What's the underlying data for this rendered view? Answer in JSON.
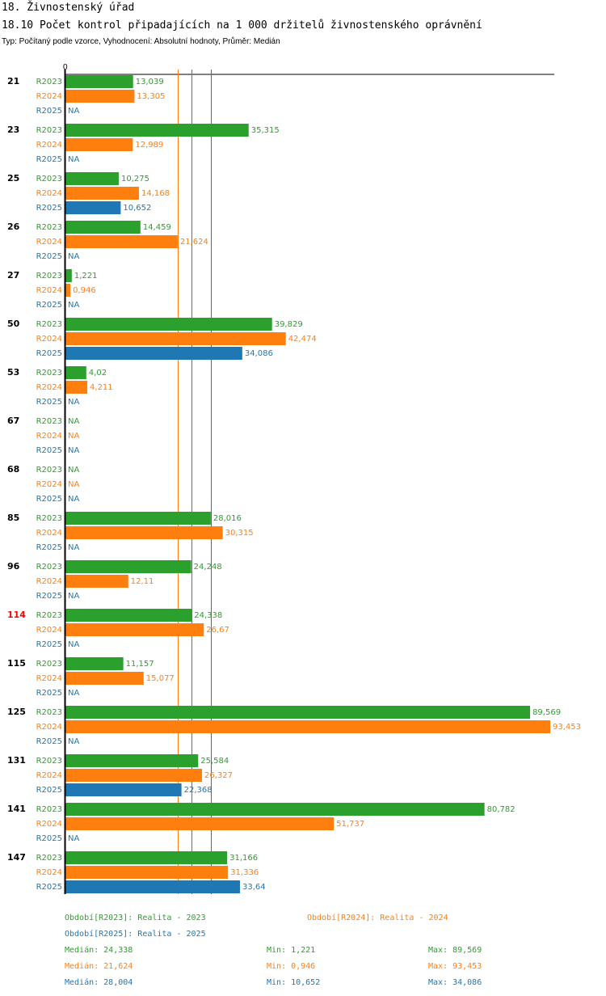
{
  "header": {
    "title": "18. Živnostenský úřad",
    "subtitle": "18.10 Počet kontrol připadajících na 1 000 držitelů živnostenského oprávnění",
    "meta": "Typ: Počítaný podle vzorce, Vyhodnocení: Absolutní hodnoty, Průměr: Medián"
  },
  "colors": {
    "R2023": "#2ca02c",
    "R2024": "#ff7f0e",
    "R2025": "#1f77b4",
    "highlight": "#ff0000",
    "text": "#000000"
  },
  "chart_data": {
    "type": "bar",
    "orientation": "horizontal",
    "axis_zero_label": "0",
    "xlim": [
      0,
      93.453
    ],
    "series_names": [
      "R2023",
      "R2024",
      "R2025"
    ],
    "categories": [
      {
        "label": "21",
        "highlight": false,
        "values": [
          13.039,
          13.305,
          null
        ],
        "labels": [
          "13,039",
          "13,305",
          "NA"
        ]
      },
      {
        "label": "23",
        "highlight": false,
        "values": [
          35.315,
          12.989,
          null
        ],
        "labels": [
          "35,315",
          "12,989",
          "NA"
        ]
      },
      {
        "label": "25",
        "highlight": false,
        "values": [
          10.275,
          14.168,
          10.652
        ],
        "labels": [
          "10,275",
          "14,168",
          "10,652"
        ]
      },
      {
        "label": "26",
        "highlight": false,
        "values": [
          14.459,
          21.624,
          null
        ],
        "labels": [
          "14,459",
          "21,624",
          "NA"
        ]
      },
      {
        "label": "27",
        "highlight": false,
        "values": [
          1.221,
          0.946,
          null
        ],
        "labels": [
          "1,221",
          "0,946",
          "NA"
        ]
      },
      {
        "label": "50",
        "highlight": false,
        "values": [
          39.829,
          42.474,
          34.086
        ],
        "labels": [
          "39,829",
          "42,474",
          "34,086"
        ]
      },
      {
        "label": "53",
        "highlight": false,
        "values": [
          4.02,
          4.211,
          null
        ],
        "labels": [
          "4,02",
          "4,211",
          "NA"
        ]
      },
      {
        "label": "67",
        "highlight": false,
        "values": [
          null,
          null,
          null
        ],
        "labels": [
          "NA",
          "NA",
          "NA"
        ]
      },
      {
        "label": "68",
        "highlight": false,
        "values": [
          null,
          null,
          null
        ],
        "labels": [
          "NA",
          "NA",
          "NA"
        ]
      },
      {
        "label": "85",
        "highlight": false,
        "values": [
          28.016,
          30.315,
          null
        ],
        "labels": [
          "28,016",
          "30,315",
          "NA"
        ]
      },
      {
        "label": "96",
        "highlight": false,
        "values": [
          24.248,
          12.11,
          null
        ],
        "labels": [
          "24,248",
          "12,11",
          "NA"
        ]
      },
      {
        "label": "114",
        "highlight": true,
        "values": [
          24.338,
          26.67,
          null
        ],
        "labels": [
          "24,338",
          "26,67",
          "NA"
        ]
      },
      {
        "label": "115",
        "highlight": false,
        "values": [
          11.157,
          15.077,
          null
        ],
        "labels": [
          "11,157",
          "15,077",
          "NA"
        ]
      },
      {
        "label": "125",
        "highlight": false,
        "values": [
          89.569,
          93.453,
          null
        ],
        "labels": [
          "89,569",
          "93,453",
          "NA"
        ]
      },
      {
        "label": "131",
        "highlight": false,
        "values": [
          25.584,
          26.327,
          22.368
        ],
        "labels": [
          "25,584",
          "26,327",
          "22,368"
        ]
      },
      {
        "label": "141",
        "highlight": false,
        "values": [
          80.782,
          51.737,
          null
        ],
        "labels": [
          "80,782",
          "51,737",
          "NA"
        ]
      },
      {
        "label": "147",
        "highlight": false,
        "values": [
          31.166,
          31.336,
          33.64
        ],
        "labels": [
          "31,166",
          "31,336",
          "33,64"
        ]
      }
    ],
    "median_lines": [
      {
        "series": "R2024",
        "value": 21.624
      },
      {
        "series": "R2023",
        "value": 24.338
      },
      {
        "series": "R2025",
        "value": 28.004
      }
    ]
  },
  "legend": {
    "periods": [
      {
        "series": "R2023",
        "text": "Období[R2023]: Realita - 2023"
      },
      {
        "series": "R2024",
        "text": "Období[R2024]: Realita - 2024"
      },
      {
        "series": "R2025",
        "text": "Období[R2025]: Realita - 2025"
      }
    ],
    "stats": [
      {
        "series": "R2023",
        "median": "Medián: 24,338",
        "min": "Min: 1,221",
        "max": "Max: 89,569"
      },
      {
        "series": "R2024",
        "median": "Medián: 21,624",
        "min": "Min: 0,946",
        "max": "Max: 93,453"
      },
      {
        "series": "R2025",
        "median": "Medián: 28,004",
        "min": "Min: 10,652",
        "max": "Max: 34,086"
      }
    ]
  }
}
